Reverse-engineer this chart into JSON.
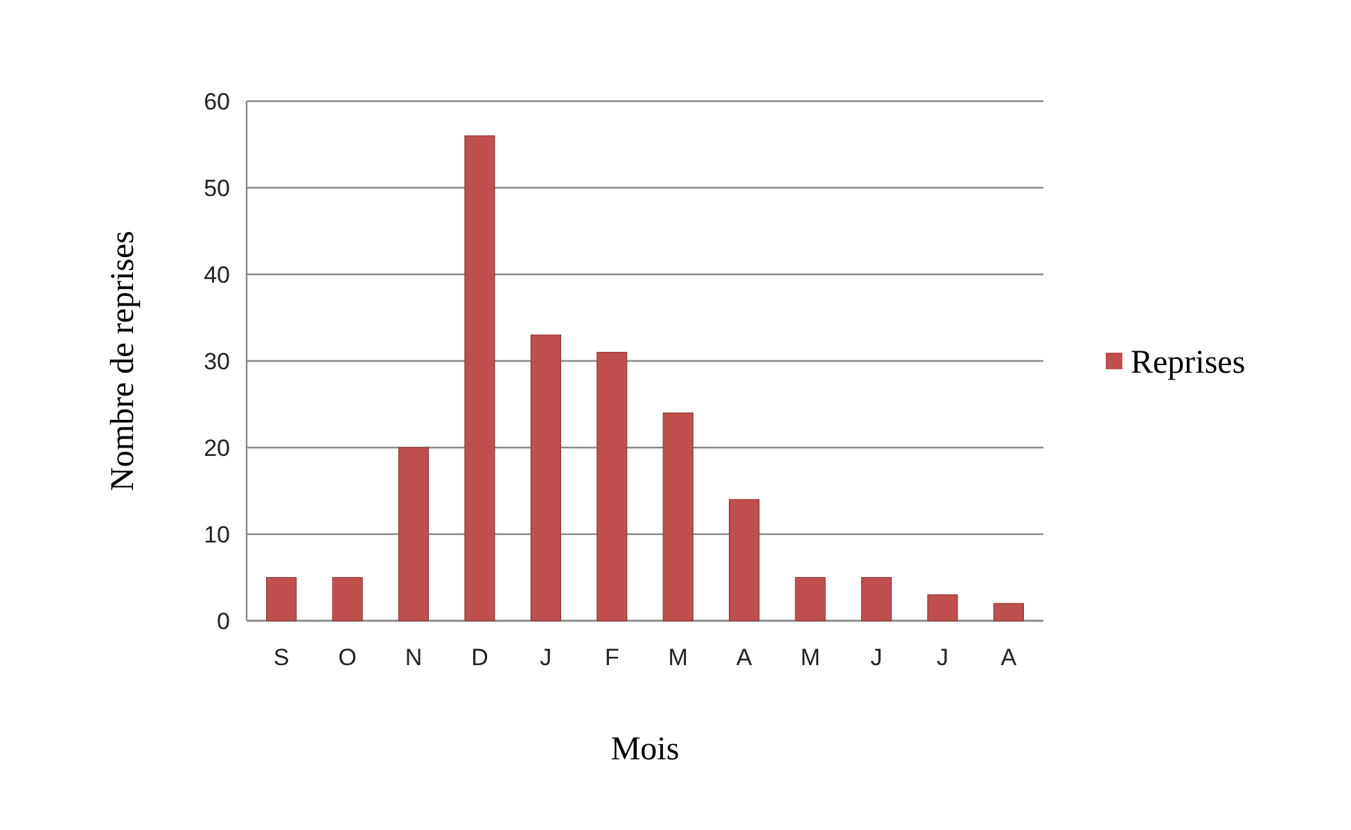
{
  "chart_data": {
    "type": "bar",
    "xlabel": "Mois",
    "ylabel": "Nombre de reprises",
    "categories": [
      "S",
      "O",
      "N",
      "D",
      "J",
      "F",
      "M",
      "A",
      "M",
      "J",
      "J",
      "A"
    ],
    "series": [
      {
        "name": "Reprises",
        "color": "#c0504d",
        "values": [
          5,
          5,
          20,
          56,
          33,
          31,
          24,
          14,
          5,
          5,
          3,
          2
        ]
      }
    ],
    "ylim": [
      0,
      60
    ],
    "yticks": [
      0,
      10,
      20,
      30,
      40,
      50,
      60
    ],
    "grid": "y",
    "legend": "right"
  }
}
